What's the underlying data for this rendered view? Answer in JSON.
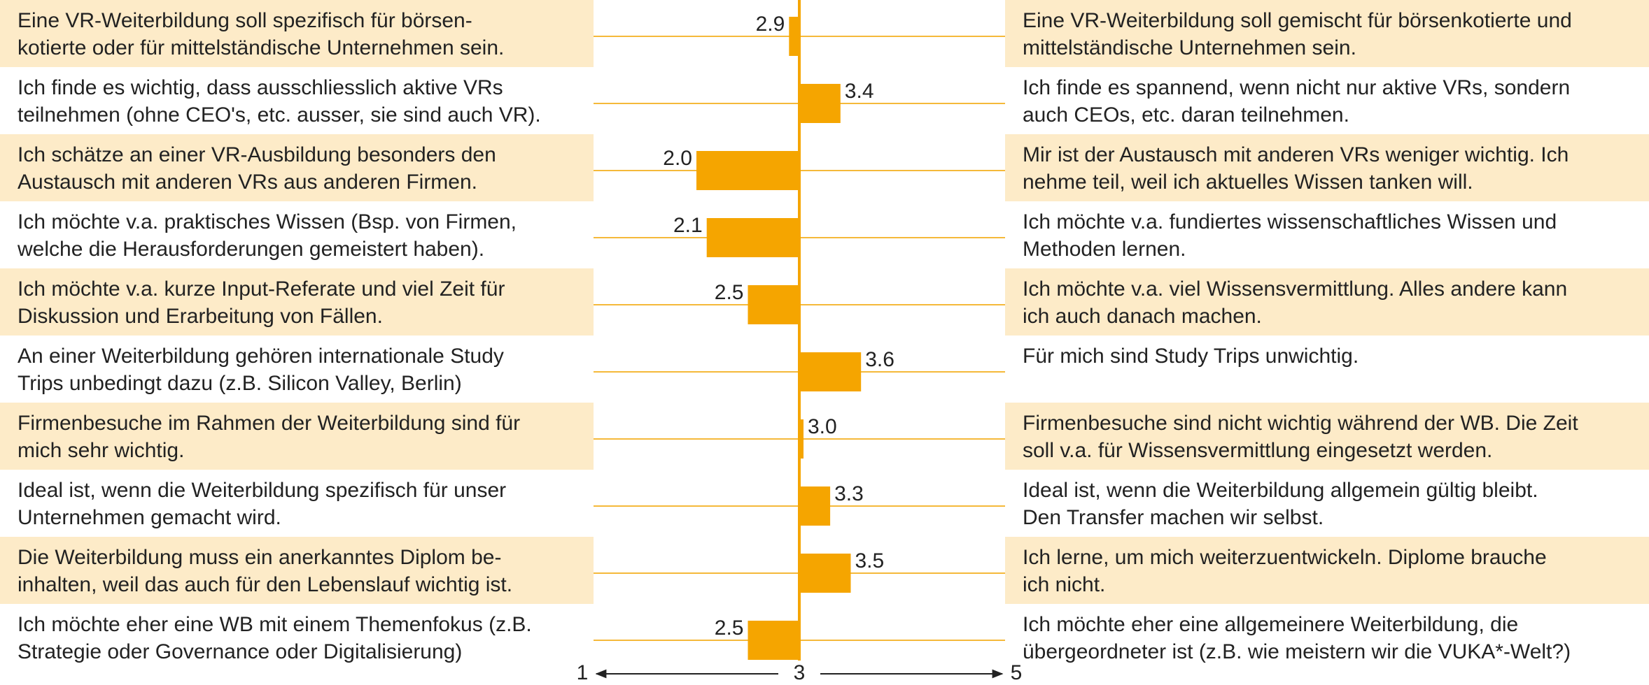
{
  "chart_data": {
    "type": "bar",
    "categories": [
      "Eine VR-Weiterbildung soll spezifisch für börsen-\nkotierte oder für mittelständische Unternehmen sein.",
      "Ich finde es wichtig, dass ausschliesslich aktive VRs\nteilnehmen (ohne CEO's, etc. ausser, sie sind auch VR).",
      "Ich schätze an einer VR-Ausbildung besonders den\nAustausch mit anderen VRs aus anderen Firmen.",
      "Ich möchte v.a. praktisches Wissen (Bsp. von Firmen,\nwelche die Herausforderungen gemeistert haben).",
      "Ich möchte v.a. kurze Input-Referate und viel Zeit für\nDiskussion und Erarbeitung von Fällen.",
      "An einer Weiterbildung gehören internationale Study\nTrips unbedingt dazu (z.B. Silicon Valley, Berlin)",
      "Firmenbesuche im Rahmen der Weiterbildung sind für\nmich sehr wichtig.",
      "Ideal ist, wenn die Weiterbildung spezifisch für unser\nUnternehmen gemacht wird.",
      "Die Weiterbildung muss ein anerkanntes Diplom be-\ninhalten, weil das auch für den Lebenslauf wichtig ist.",
      "Ich möchte eher eine WB mit einem Themenfokus (z.B.\nStrategie oder Governance oder Digitalisierung)"
    ],
    "right_categories": [
      "Eine VR-Weiterbildung soll gemischt für börsenkotierte und\nmittelständische Unternehmen sein.",
      "Ich finde es spannend, wenn nicht nur aktive VRs, sondern\nauch CEOs, etc. daran teilnehmen.",
      "Mir ist der Austausch mit anderen VRs weniger wichtig. Ich\nnehme teil, weil ich aktuelles Wissen tanken will.",
      "Ich möchte v.a. fundiertes wissenschaftliches Wissen und\nMethoden lernen.",
      "Ich möchte v.a. viel Wissensvermittlung. Alles andere kann\nich auch danach machen.",
      "Für mich sind Study Trips unwichtig.",
      "Firmenbesuche sind nicht wichtig während der WB. Die Zeit\nsoll v.a. für Wissensvermittlung eingesetzt werden.",
      "Ideal ist, wenn die Weiterbildung allgemein gültig bleibt.\nDen Transfer machen wir selbst.",
      "Ich lerne, um mich weiterzuentwickeln. Diplome brauche\nich nicht.",
      "Ich möchte eher eine allgemeinere Weiterbildung, die\nübergeordneter ist (z.B. wie meistern wir die VUKA*-Welt?)"
    ],
    "values": [
      2.9,
      3.4,
      2.0,
      2.1,
      2.5,
      3.6,
      3.0,
      3.3,
      3.5,
      2.5
    ],
    "value_labels": [
      "2.9",
      "3.4",
      "2.0",
      "2.1",
      "2.5",
      "3.6",
      "3.0",
      "3.3",
      "3.5",
      "2.5"
    ],
    "color": "#f5a500",
    "xlim": [
      1,
      5
    ],
    "xticks": [
      1,
      3,
      5
    ]
  }
}
